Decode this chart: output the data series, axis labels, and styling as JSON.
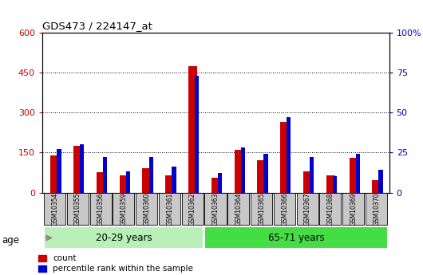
{
  "title": "GDS473 / 224147_at",
  "samples": [
    "GSM10354",
    "GSM10355",
    "GSM10356",
    "GSM10359",
    "GSM10360",
    "GSM10361",
    "GSM10362",
    "GSM10363",
    "GSM10364",
    "GSM10365",
    "GSM10366",
    "GSM10367",
    "GSM10368",
    "GSM10369",
    "GSM10370"
  ],
  "counts": [
    140,
    175,
    75,
    65,
    90,
    65,
    475,
    55,
    160,
    120,
    265,
    80,
    65,
    130,
    45
  ],
  "percentile_ranks": [
    27,
    30,
    22,
    13,
    22,
    16,
    73,
    12,
    28,
    24,
    47,
    22,
    10,
    24,
    14
  ],
  "groups": [
    {
      "label": "20-29 years",
      "start": 0,
      "end": 7,
      "color": "#90EE90"
    },
    {
      "label": "65-71 years",
      "start": 7,
      "end": 15,
      "color": "#33CC33"
    }
  ],
  "left_ylim": [
    0,
    600
  ],
  "right_ylim": [
    0,
    100
  ],
  "left_yticks": [
    0,
    150,
    300,
    450,
    600
  ],
  "right_yticks": [
    0,
    25,
    50,
    75,
    100
  ],
  "left_ycolor": "#CC0000",
  "right_ycolor": "#0000CC",
  "bar_color_count": "#CC0000",
  "bar_color_pct": "#0000CC",
  "plot_bg": "#ffffff",
  "tick_bg": "#C8C8C8",
  "age_band_color1": "#B8F0B8",
  "age_band_color2": "#44DD44",
  "legend_labels": [
    "count",
    "percentile rank within the sample"
  ],
  "age_label": "age",
  "fig_width": 5.3,
  "fig_height": 3.45,
  "dpi": 100
}
